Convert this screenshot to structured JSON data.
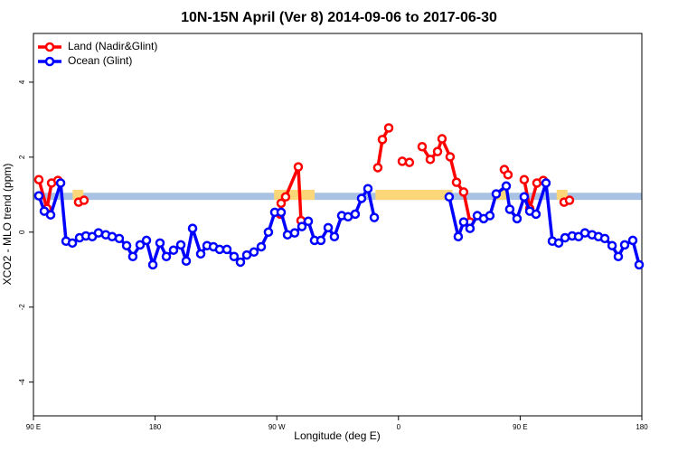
{
  "chart_data": {
    "type": "line",
    "title": "10N-15N April (Ver 8)   2014-09-06 to 2017-06-30",
    "x_label": "Longitude (deg E)",
    "y_label": "XCO2 - MLO trend (ppm)",
    "xlim": [
      90,
      540
    ],
    "ylim": [
      -4.9,
      5.3
    ],
    "xticks": [
      {
        "value": 90,
        "label": "90 E"
      },
      180,
      {
        "value": 270,
        "label": "90 W"
      },
      {
        "value": 360,
        "label": "0"
      },
      {
        "value": 450,
        "label": "90 E"
      },
      {
        "value": 540,
        "label": "180"
      }
    ],
    "yticks": [
      -4,
      -2,
      0,
      2,
      4
    ],
    "legend": "top-left",
    "reference_band": {
      "range": [
        0.86,
        1.05
      ],
      "color": "#a9c2e4"
    },
    "highlight_ranges": {
      "ranges": [
        [
          119,
          127
        ],
        [
          268,
          298
        ],
        [
          343,
          400
        ],
        [
          430,
          440
        ],
        [
          477,
          485
        ]
      ],
      "y": [
        0.86,
        1.13
      ],
      "color": "#fbd77a"
    },
    "series": [
      {
        "name": "Land (Nadir&Glint)",
        "color": "#ff0000",
        "x": [
          94.0,
          100.0,
          103.4,
          108.1,
          null,
          123.4,
          127.4,
          null,
          272.5,
          273.2,
          276.5,
          285.9,
          287.9,
          null,
          344.7,
          348.1,
          352.8,
          null,
          362.8,
          368.1,
          null,
          377.5,
          383.5,
          388.9,
          392.2,
          398.2,
          402.9,
          408.2,
          412.9,
          null,
          438.3,
          441.0,
          null,
          453.0,
          457.1,
          462.4,
          467.1,
          null,
          482.5,
          486.5
        ],
        "values": [
          1.4,
          0.63,
          1.31,
          1.38,
          null,
          0.8,
          0.85,
          null,
          0.48,
          0.77,
          0.94,
          1.74,
          0.31,
          null,
          1.72,
          2.47,
          2.78,
          null,
          1.89,
          1.86,
          null,
          2.28,
          1.94,
          2.15,
          2.49,
          2.01,
          1.33,
          1.07,
          0.27,
          null,
          1.67,
          1.53,
          null,
          1.4,
          0.63,
          1.31,
          1.38,
          null,
          0.8,
          0.85
        ]
      },
      {
        "name": "Ocean (Glint)",
        "color": "#0000ff",
        "x": [
          94.0,
          98.0,
          102.7,
          110.1,
          114.1,
          118.8,
          124.1,
          128.8,
          133.5,
          138.1,
          143.5,
          148.2,
          153.5,
          158.9,
          163.5,
          168.9,
          173.6,
          178.3,
          183.6,
          188.3,
          193.6,
          199.0,
          203.0,
          207.7,
          213.7,
          218.4,
          223.1,
          227.7,
          233.1,
          238.4,
          243.1,
          247.8,
          253.1,
          258.5,
          263.8,
          268.5,
          273.2,
          277.9,
          283.2,
          288.6,
          293.3,
          297.9,
          302.6,
          308.0,
          312.6,
          318.0,
          322.7,
          328.0,
          332.7,
          337.4,
          342.1,
          null,
          397.5,
          404.2,
          408.2,
          412.9,
          418.3,
          423.0,
          427.6,
          432.3,
          439.7,
          442.3,
          447.7,
          453.0,
          457.1,
          461.7,
          469.1,
          473.8,
          478.5,
          483.2,
          488.5,
          493.2,
          497.9,
          503.2,
          507.9,
          512.6,
          518.0,
          522.6,
          527.3,
          533.3,
          538.0
        ],
        "values": [
          0.97,
          0.56,
          0.46,
          1.31,
          -0.24,
          -0.29,
          -0.15,
          -0.1,
          -0.12,
          -0.02,
          -0.07,
          -0.12,
          -0.17,
          -0.36,
          -0.65,
          -0.34,
          -0.22,
          -0.87,
          -0.29,
          -0.65,
          -0.48,
          -0.34,
          -0.77,
          0.1,
          -0.58,
          -0.36,
          -0.39,
          -0.46,
          -0.46,
          -0.65,
          -0.8,
          -0.61,
          -0.53,
          -0.39,
          0,
          0.53,
          0.53,
          -0.07,
          -0.02,
          0.15,
          0.29,
          -0.22,
          -0.22,
          0.12,
          -0.12,
          0.44,
          0.41,
          0.48,
          0.9,
          1.16,
          0.39,
          null,
          0.94,
          -0.12,
          0.27,
          0.1,
          0.44,
          0.36,
          0.44,
          1.02,
          1.23,
          0.61,
          0.36,
          0.94,
          0.56,
          0.48,
          1.31,
          -0.24,
          -0.29,
          -0.15,
          -0.1,
          -0.12,
          -0.02,
          -0.07,
          -0.12,
          -0.17,
          -0.36,
          -0.65,
          -0.34,
          -0.22,
          -0.87
        ]
      }
    ]
  }
}
